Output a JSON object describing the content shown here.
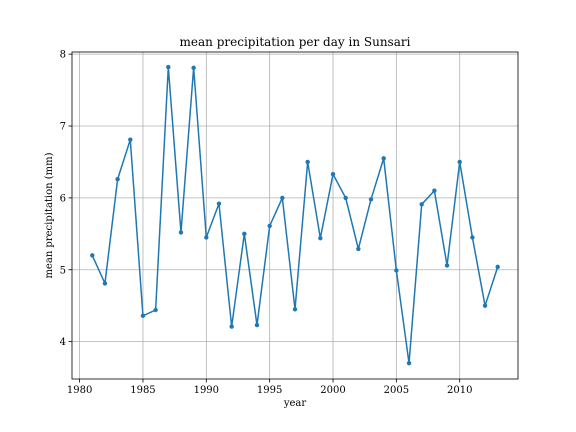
{
  "chart_data": {
    "type": "line",
    "title": "mean precipitation per day in Sunsari",
    "xlabel": "year",
    "ylabel": "mean precipitation (mm)",
    "xlim": [
      1979.4,
      2014.6
    ],
    "ylim": [
      3.48,
      8.03
    ],
    "xticks": [
      1980,
      1985,
      1990,
      1995,
      2000,
      2005,
      2010
    ],
    "yticks": [
      4,
      5,
      6,
      7,
      8
    ],
    "grid": true,
    "line_color": "#1f77b4",
    "marker": "circle",
    "series": [
      {
        "x": [
          1981,
          1982,
          1983,
          1984,
          1985,
          1986,
          1987,
          1988,
          1989,
          1990,
          1991,
          1992,
          1993,
          1994,
          1995,
          1996,
          1997,
          1998,
          1999,
          2000,
          2001,
          2002,
          2003,
          2004,
          2005,
          2006,
          2007,
          2008,
          2009,
          2010,
          2011,
          2012,
          2013
        ],
        "values": [
          5.2,
          4.81,
          6.26,
          6.81,
          4.36,
          4.44,
          7.82,
          5.52,
          7.81,
          5.45,
          5.92,
          4.21,
          5.5,
          4.23,
          5.61,
          6.0,
          4.45,
          6.5,
          5.44,
          6.33,
          6.0,
          5.29,
          5.98,
          6.55,
          4.99,
          3.7,
          5.91,
          6.1,
          5.06,
          6.5,
          5.45,
          4.5,
          5.04
        ]
      }
    ]
  }
}
